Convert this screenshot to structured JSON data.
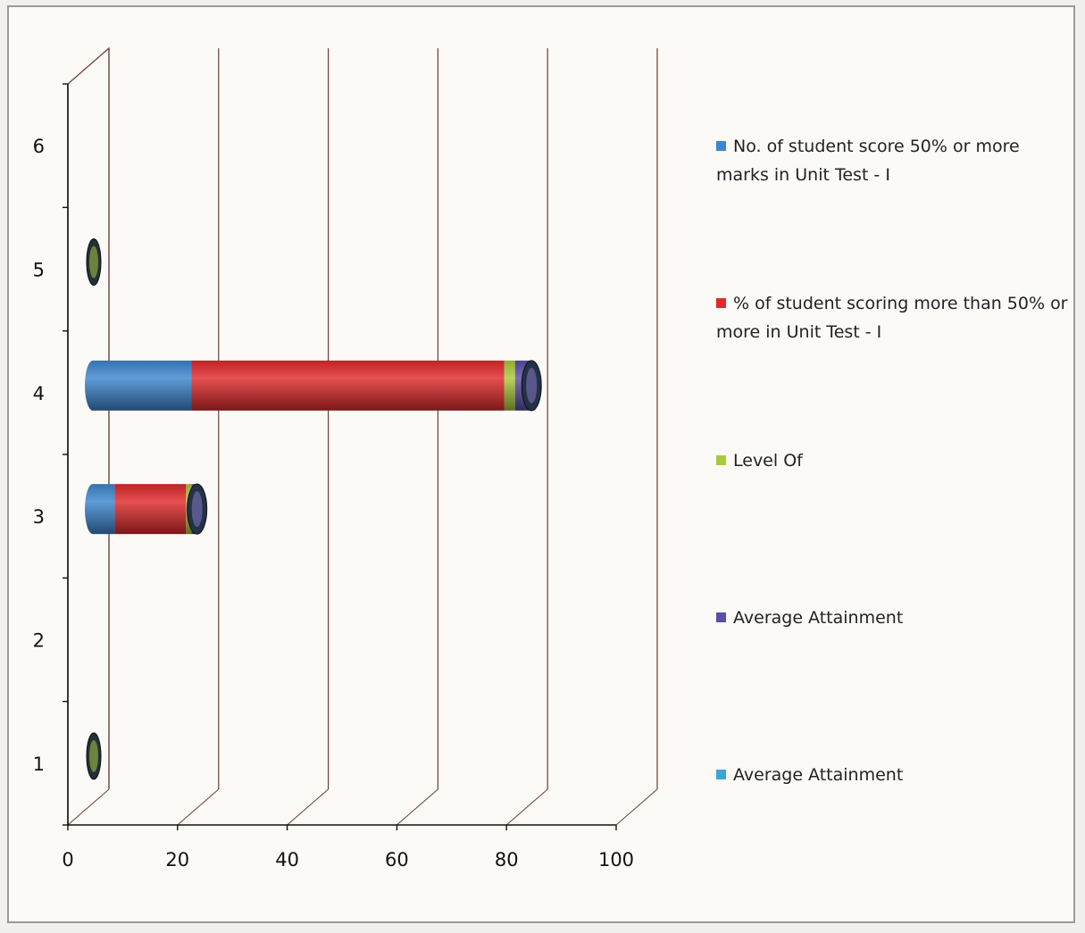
{
  "chart_data": {
    "type": "bar",
    "orientation": "horizontal",
    "stacked": true,
    "three_d": true,
    "title": "",
    "xlabel": "",
    "ylabel": "",
    "categories": [
      "1",
      "2",
      "3",
      "4",
      "5",
      "6"
    ],
    "xlim": [
      0,
      100
    ],
    "x_ticks": [
      "0",
      "20",
      "40",
      "60",
      "80",
      "100"
    ],
    "grid": true,
    "legend_position": "right",
    "series": [
      {
        "name": "No. of student score 50% or more marks in Unit Test - I",
        "color": "#3d86cf",
        "values": [
          0,
          0,
          4,
          18,
          0,
          0
        ]
      },
      {
        "name": "% of student scoring more than 50% or more in Unit Test - I",
        "color": "#e0292b",
        "values": [
          0,
          0,
          13,
          57,
          0,
          0
        ]
      },
      {
        "name": "Level Of",
        "color": "#a9c93a",
        "values": [
          0.5,
          0,
          1,
          2,
          0.5,
          0
        ]
      },
      {
        "name": "Average Attainment",
        "color": "#5a4fa6",
        "values": [
          0,
          0,
          1,
          3,
          0,
          0
        ]
      },
      {
        "name": "Average Attainment",
        "color": "#3aa6d6",
        "values": [
          0,
          0,
          0,
          0,
          0,
          0
        ]
      }
    ]
  }
}
